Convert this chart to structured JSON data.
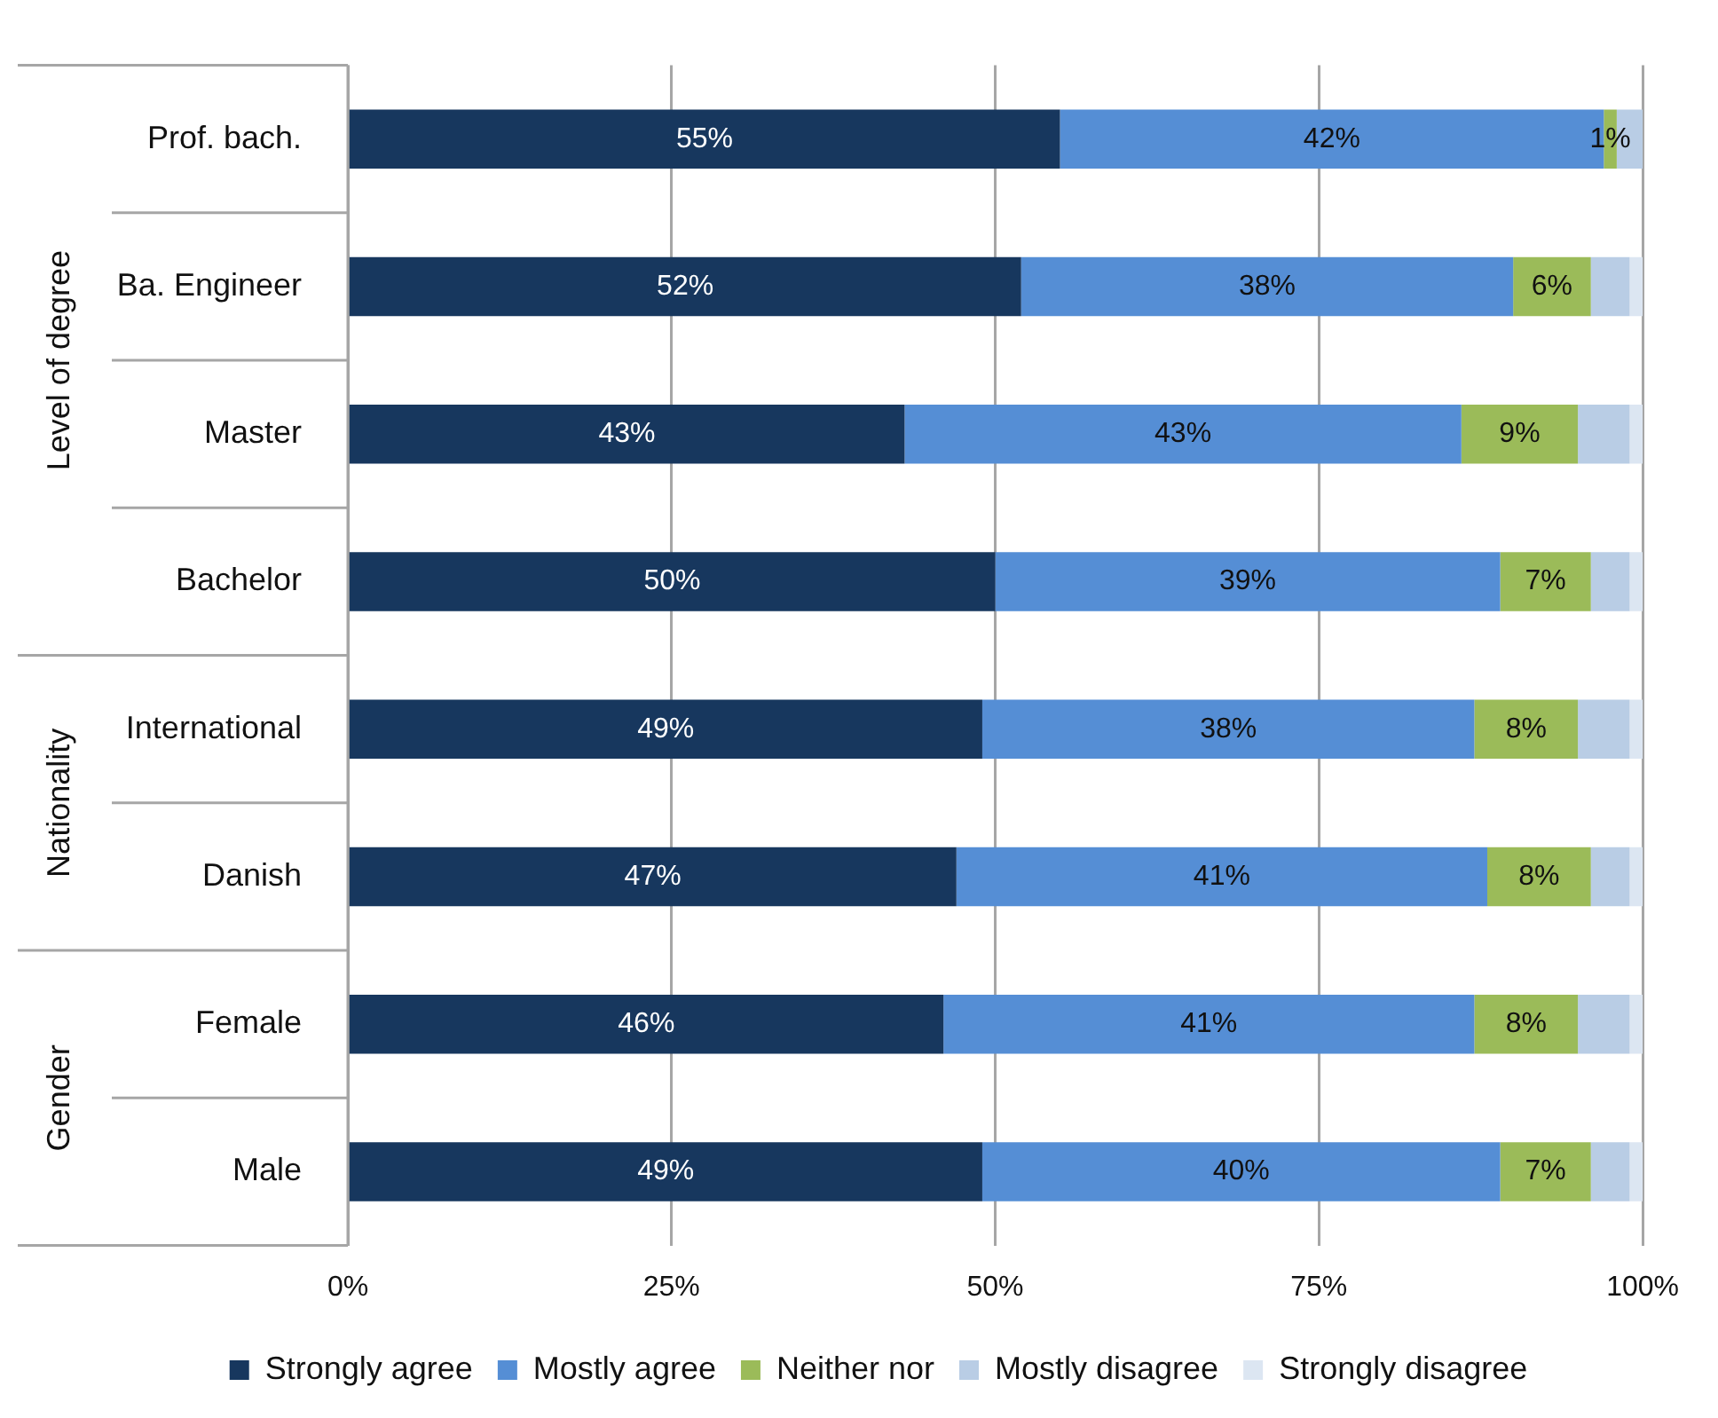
{
  "chart_data": {
    "type": "bar",
    "orientation": "horizontal",
    "stacked": true,
    "categories": [
      "Prof. bach.",
      "Ba. Engineer",
      "Master",
      "Bachelor",
      "International",
      "Danish",
      "Female",
      "Male"
    ],
    "series": [
      {
        "name": "Strongly agree",
        "color": "#17375e",
        "values": [
          55,
          52,
          43,
          50,
          49,
          47,
          46,
          49
        ],
        "value_labels": [
          "55%",
          "52%",
          "43%",
          "50%",
          "49%",
          "47%",
          "46%",
          "49%"
        ]
      },
      {
        "name": "Mostly agree",
        "color": "#558ed5",
        "values": [
          42,
          38,
          43,
          39,
          38,
          41,
          41,
          40
        ],
        "value_labels": [
          "42%",
          "38%",
          "43%",
          "39%",
          "38%",
          "41%",
          "41%",
          "40%"
        ]
      },
      {
        "name": "Neither nor",
        "color": "#9bbb59",
        "values": [
          1,
          6,
          9,
          7,
          8,
          8,
          8,
          7
        ],
        "value_labels": [
          "1%",
          "6%",
          "9%",
          "7%",
          "8%",
          "8%",
          "8%",
          "7%"
        ]
      },
      {
        "name": "Mostly disagree",
        "color": "#b9cde5",
        "values": [
          2,
          3,
          4,
          3,
          4,
          3,
          4,
          3
        ]
      },
      {
        "name": "Strongly disagree",
        "color": "#dce6f2",
        "values": [
          0,
          1,
          1,
          1,
          1,
          1,
          1,
          1
        ]
      }
    ],
    "xlim": [
      0,
      100
    ],
    "xticks": [
      {
        "value": 0,
        "label": "0%"
      },
      {
        "value": 25,
        "label": "25%"
      },
      {
        "value": 50,
        "label": "50%"
      },
      {
        "value": 75,
        "label": "75%"
      },
      {
        "value": 100,
        "label": "100%"
      }
    ],
    "grid": "x",
    "legend": "bottom",
    "annotations": [
      "Level of degree",
      "Nationality",
      "Gender"
    ]
  }
}
